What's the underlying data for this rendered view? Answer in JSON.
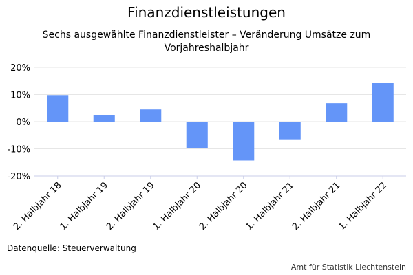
{
  "header": {
    "title": "Finanzdienstleistungen",
    "subtitle": "Sechs ausgewählte Finanzdienstleister – Veränderung Umsätze zum Vorjahreshalbjahr"
  },
  "footer": {
    "source": "Datenquelle: Steuerverwaltung",
    "credit": "Amt für Statistik Liechtenstein"
  },
  "chart_data": {
    "type": "bar",
    "categories": [
      "2. Halbjahr 18",
      "1. Halbjahr 19",
      "2. Halbjahr 19",
      "1. Halbjahr 20",
      "2. Halbjahr 20",
      "1. Halbjahr 21",
      "2. Halbjahr 21",
      "1. Halbjahr 22"
    ],
    "values": [
      9.8,
      2.5,
      4.5,
      -9.8,
      -14.3,
      -6.5,
      6.8,
      14.3
    ],
    "ylim": [
      -20,
      20
    ],
    "yticks": [
      20,
      10,
      0,
      -10,
      -20
    ],
    "ytick_labels": [
      "20%",
      "10%",
      "0%",
      "-10%",
      "-20%"
    ],
    "bar_color": "#6495f8",
    "grid": true
  }
}
